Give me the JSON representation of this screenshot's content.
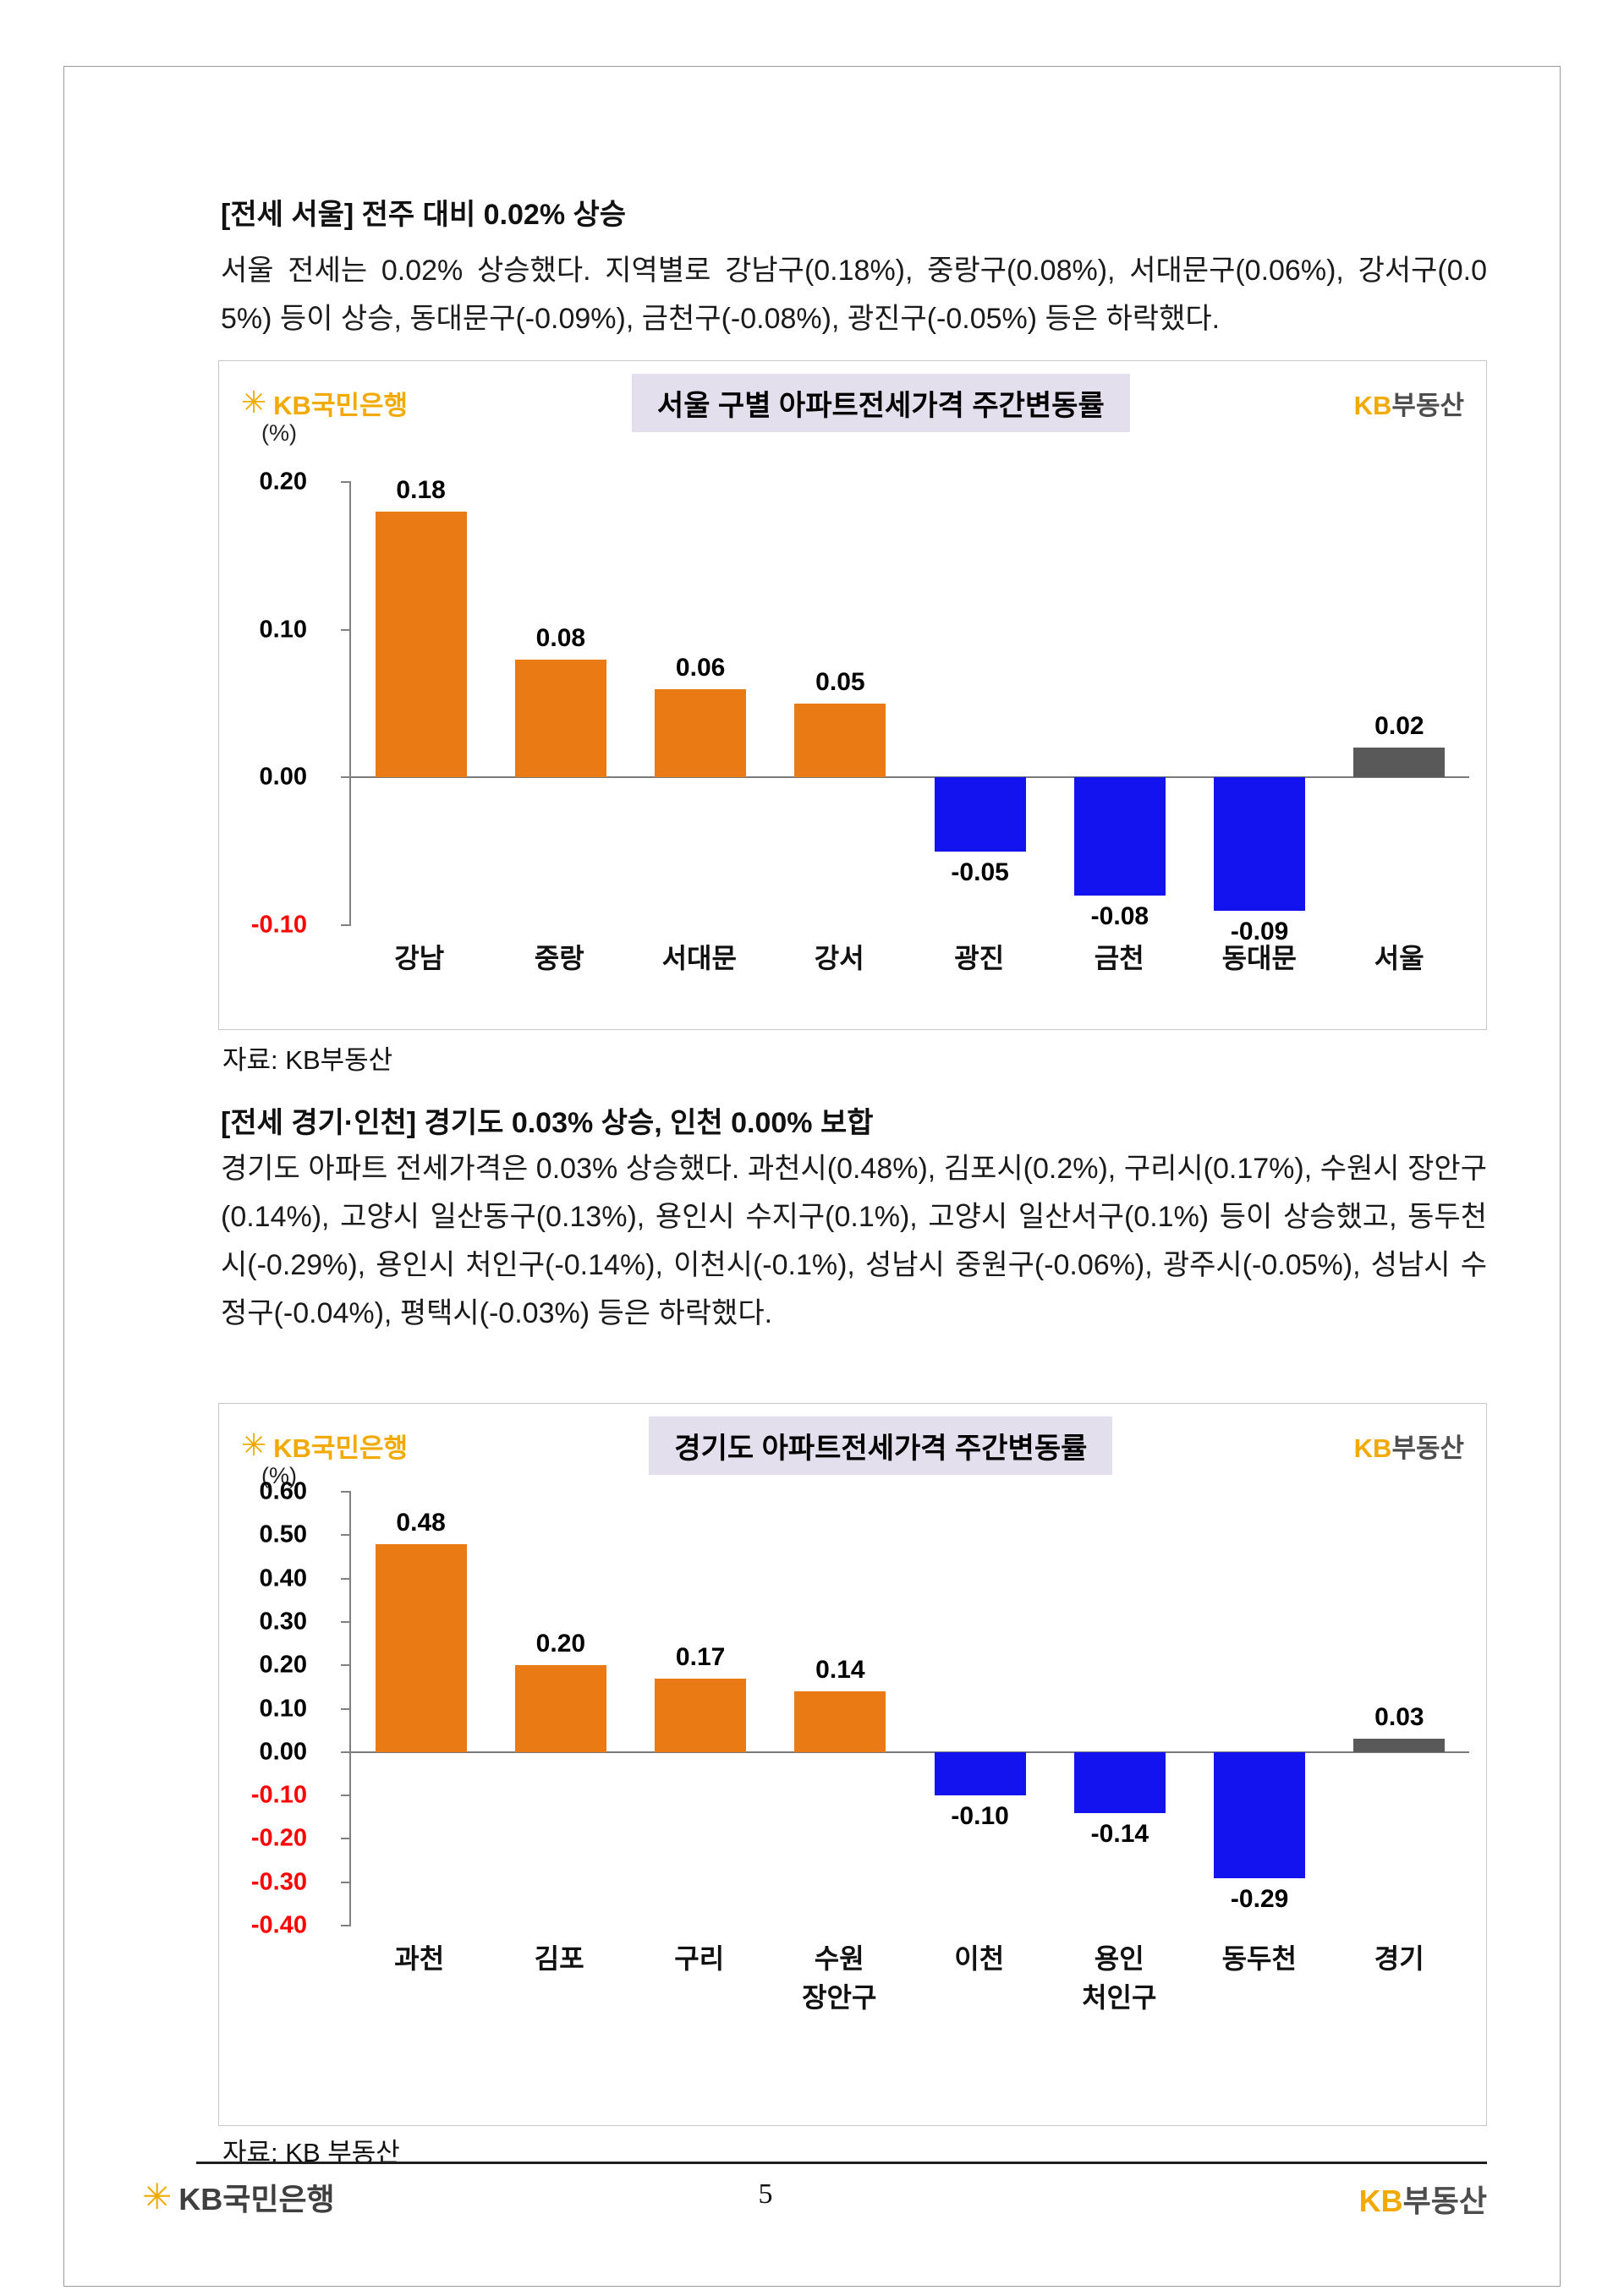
{
  "document": {
    "page_number": "5"
  },
  "brand": {
    "star": "✳",
    "bank_name": "KB국민은행",
    "re_kb": "KB",
    "re_name": "부동산",
    "gold": "#F2A900",
    "dark_gray": "#4d4d4d"
  },
  "sections": [
    {
      "heading": "[전세 서울] 전주 대비 0.02% 상승",
      "body": "서울 전세는 0.02% 상승했다. 지역별로 강남구(0.18%), 중랑구(0.08%), 서대문구(0.06%), 강서구(0.05%) 등이 상승, 동대문구(-0.09%), 금천구(-0.08%), 광진구(-0.05%) 등은 하락했다.",
      "source": "자료: KB부동산"
    },
    {
      "heading": "[전세 경기·인천] 경기도 0.03% 상승, 인천 0.00% 보합",
      "body": "경기도 아파트 전세가격은 0.03% 상승했다. 과천시(0.48%), 김포시(0.2%), 구리시(0.17%), 수원시 장안구(0.14%), 고양시 일산동구(0.13%), 용인시 수지구(0.1%), 고양시 일산서구(0.1%) 등이 상승했고, 동두천시(-0.29%), 용인시 처인구(-0.14%), 이천시(-0.1%), 성남시 중원구(-0.06%), 광주시(-0.05%), 성남시 수정구(-0.04%), 평택시(-0.03%) 등은 하락했다.",
      "source": "자료: KB 부동산"
    }
  ],
  "chart_data": [
    {
      "type": "bar",
      "title": "서울 구별 아파트전세가격 주간변동률",
      "unit_label": "(%)",
      "categories": [
        "강남",
        "중랑",
        "서대문",
        "강서",
        "광진",
        "금천",
        "동대문",
        "서울"
      ],
      "values": [
        0.18,
        0.08,
        0.06,
        0.05,
        -0.05,
        -0.08,
        -0.09,
        0.02
      ],
      "value_labels": [
        "0.18",
        "0.08",
        "0.06",
        "0.05",
        "-0.05",
        "-0.08",
        "-0.09",
        "0.02"
      ],
      "bar_colors": [
        "#EA7A13",
        "#EA7A13",
        "#EA7A13",
        "#EA7A13",
        "#1313EF",
        "#1313EF",
        "#1313EF",
        "#595959"
      ],
      "ylim": [
        -0.1,
        0.2
      ],
      "yticks": [
        0.2,
        0.1,
        0.0,
        -0.1
      ],
      "ytick_labels": [
        "0.20",
        "0.10",
        "0.00",
        "-0.10"
      ],
      "style": {
        "title_bg": "#E4DFEC",
        "negative_tick_color": "#FF0000",
        "grid": "off",
        "legend": "none"
      }
    },
    {
      "type": "bar",
      "title": "경기도 아파트전세가격 주간변동률",
      "unit_label": "(%)",
      "categories": [
        "과천",
        "김포",
        "구리",
        "수원\n장안구",
        "이천",
        "용인\n처인구",
        "동두천",
        "경기"
      ],
      "values": [
        0.48,
        0.2,
        0.17,
        0.14,
        -0.1,
        -0.14,
        -0.29,
        0.03
      ],
      "value_labels": [
        "0.48",
        "0.20",
        "0.17",
        "0.14",
        "-0.10",
        "-0.14",
        "-0.29",
        "0.03"
      ],
      "bar_colors": [
        "#EA7A13",
        "#EA7A13",
        "#EA7A13",
        "#EA7A13",
        "#1313EF",
        "#1313EF",
        "#1313EF",
        "#595959"
      ],
      "ylim": [
        -0.4,
        0.6
      ],
      "yticks": [
        0.6,
        0.5,
        0.4,
        0.3,
        0.2,
        0.1,
        0.0,
        -0.1,
        -0.2,
        -0.3,
        -0.4
      ],
      "ytick_labels": [
        "0.60",
        "0.50",
        "0.40",
        "0.30",
        "0.20",
        "0.10",
        "0.00",
        "-0.10",
        "-0.20",
        "-0.30",
        "-0.40"
      ],
      "style": {
        "title_bg": "#E4DFEC",
        "negative_tick_color": "#FF0000",
        "grid": "off",
        "legend": "none"
      }
    }
  ]
}
